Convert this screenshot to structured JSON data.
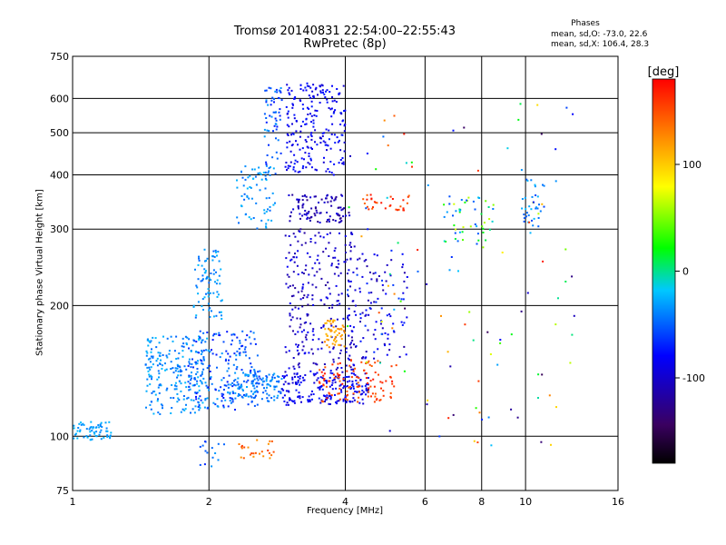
{
  "header": {
    "title_line1": "Tromsø 20140831 22:54:00–22:55:43",
    "title_line2": "RwPretec (8p)"
  },
  "phases": {
    "title": "Phases",
    "line1": "mean, sd,O: -73.0, 22.6",
    "line2": "mean, sd,X: 106.4, 28.3"
  },
  "chart_data": {
    "type": "scatter",
    "title": "Tromsø 20140831 22:54:00–22:55:43",
    "subtitle": "RwPretec (8p)",
    "xlabel": "Frequency [MHz]",
    "ylabel": "Stationary phase Virtual Height [km]",
    "x_scale": "log",
    "y_scale": "log",
    "xlim": [
      1,
      16
    ],
    "ylim": [
      75,
      750
    ],
    "x_ticks": [
      1,
      2,
      4,
      6,
      8,
      10,
      16
    ],
    "y_ticks": [
      75,
      100,
      200,
      300,
      400,
      500,
      600,
      750
    ],
    "grid": true,
    "colorbar": {
      "label": "[deg]",
      "range": [
        -180,
        180
      ],
      "ticks": [
        100,
        0,
        -100
      ],
      "colormap": [
        "#000000",
        "#3a0060",
        "#0000ff",
        "#00c8ff",
        "#00ff00",
        "#ffff00",
        "#ff8000",
        "#ff0000"
      ]
    },
    "clusters": [
      {
        "x": [
          1.0,
          1.22
        ],
        "y": [
          98,
          108
        ],
        "phase": [
          -40,
          -20
        ],
        "n": 60
      },
      {
        "x": [
          1.45,
          2.0
        ],
        "y": [
          112,
          170
        ],
        "phase": [
          -50,
          -20
        ],
        "n": 220
      },
      {
        "x": [
          1.8,
          2.6
        ],
        "y": [
          115,
          175
        ],
        "phase": [
          -75,
          -30
        ],
        "n": 200
      },
      {
        "x": [
          1.85,
          2.15
        ],
        "y": [
          185,
          270
        ],
        "phase": [
          -50,
          -20
        ],
        "n": 80
      },
      {
        "x": [
          2.2,
          2.9
        ],
        "y": [
          120,
          140
        ],
        "phase": [
          -55,
          -25
        ],
        "n": 120
      },
      {
        "x": [
          2.3,
          2.8
        ],
        "y": [
          300,
          420
        ],
        "phase": [
          -50,
          -20
        ],
        "n": 70
      },
      {
        "x": [
          2.65,
          2.9
        ],
        "y": [
          400,
          640
        ],
        "phase": [
          -75,
          -30
        ],
        "n": 60
      },
      {
        "x": [
          2.95,
          4.0
        ],
        "y": [
          400,
          650
        ],
        "phase": [
          -100,
          -70
        ],
        "n": 220
      },
      {
        "x": [
          3.0,
          4.1
        ],
        "y": [
          310,
          360
        ],
        "phase": [
          -130,
          -90
        ],
        "n": 100
      },
      {
        "x": [
          2.95,
          4.2
        ],
        "y": [
          140,
          300
        ],
        "phase": [
          -120,
          -80
        ],
        "n": 250
      },
      {
        "x": [
          2.9,
          4.5
        ],
        "y": [
          118,
          140
        ],
        "phase": [
          -100,
          -70
        ],
        "n": 200
      },
      {
        "x": [
          3.6,
          4.0
        ],
        "y": [
          160,
          185
        ],
        "phase": [
          100,
          130
        ],
        "n": 50
      },
      {
        "x": [
          3.5,
          5.2
        ],
        "y": [
          120,
          150
        ],
        "phase": [
          140,
          175
        ],
        "n": 110
      },
      {
        "x": [
          4.0,
          5.5
        ],
        "y": [
          150,
          270
        ],
        "phase": [
          -120,
          -60
        ],
        "n": 120
      },
      {
        "x": [
          4.3,
          5.6
        ],
        "y": [
          330,
          360
        ],
        "phase": [
          140,
          175
        ],
        "n": 30
      },
      {
        "x": [
          6.6,
          8.5
        ],
        "y": [
          280,
          360
        ],
        "phase": [
          -60,
          70
        ],
        "n": 50
      },
      {
        "x": [
          9.8,
          11.0
        ],
        "y": [
          290,
          390
        ],
        "phase": [
          -60,
          -20
        ],
        "n": 35
      },
      {
        "x": [
          2.3,
          2.8
        ],
        "y": [
          88,
          98
        ],
        "phase": [
          120,
          160
        ],
        "n": 25
      },
      {
        "x": [
          1.9,
          2.2
        ],
        "y": [
          85,
          100
        ],
        "phase": [
          -70,
          -30
        ],
        "n": 15
      },
      {
        "x": [
          4.0,
          13.0
        ],
        "y": [
          95,
          600
        ],
        "phase": [
          -150,
          170
        ],
        "n": 110
      }
    ]
  }
}
